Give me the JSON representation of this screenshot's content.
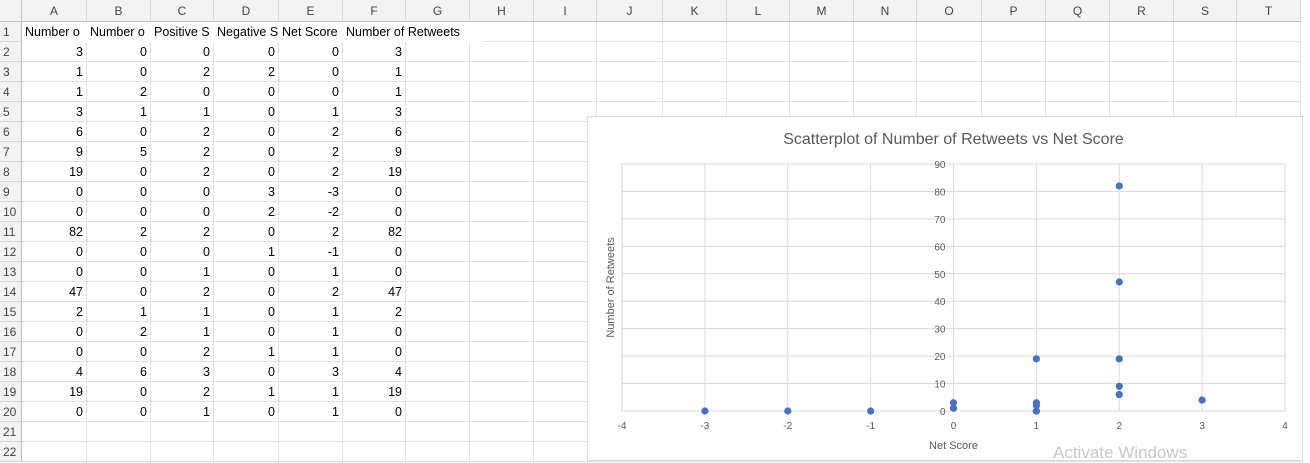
{
  "sheet": {
    "columns": [
      "A",
      "B",
      "C",
      "D",
      "E",
      "F",
      "G",
      "H",
      "I",
      "J",
      "K",
      "L",
      "M",
      "N",
      "O",
      "P",
      "Q",
      "R",
      "S",
      "T"
    ],
    "row_numbers": [
      "1",
      "2",
      "3",
      "4",
      "5",
      "6",
      "7",
      "8",
      "9",
      "10",
      "11",
      "12",
      "13",
      "14",
      "15",
      "16",
      "17",
      "18",
      "19",
      "20",
      "21",
      "22"
    ],
    "headers": [
      "Number o",
      "Number o",
      "Positive S",
      "Negative S",
      "Net Score",
      "Number of Retweets"
    ],
    "rows": [
      [
        "3",
        "0",
        "0",
        "0",
        "0",
        "3"
      ],
      [
        "1",
        "0",
        "2",
        "2",
        "0",
        "1"
      ],
      [
        "1",
        "2",
        "0",
        "0",
        "0",
        "1"
      ],
      [
        "3",
        "1",
        "1",
        "0",
        "1",
        "3"
      ],
      [
        "6",
        "0",
        "2",
        "0",
        "2",
        "6"
      ],
      [
        "9",
        "5",
        "2",
        "0",
        "2",
        "9"
      ],
      [
        "19",
        "0",
        "2",
        "0",
        "2",
        "19"
      ],
      [
        "0",
        "0",
        "0",
        "3",
        "-3",
        "0"
      ],
      [
        "0",
        "0",
        "0",
        "2",
        "-2",
        "0"
      ],
      [
        "82",
        "2",
        "2",
        "0",
        "2",
        "82"
      ],
      [
        "0",
        "0",
        "0",
        "1",
        "-1",
        "0"
      ],
      [
        "0",
        "0",
        "1",
        "0",
        "1",
        "0"
      ],
      [
        "47",
        "0",
        "2",
        "0",
        "2",
        "47"
      ],
      [
        "2",
        "1",
        "1",
        "0",
        "1",
        "2"
      ],
      [
        "0",
        "2",
        "1",
        "0",
        "1",
        "0"
      ],
      [
        "0",
        "0",
        "2",
        "1",
        "1",
        "0"
      ],
      [
        "4",
        "6",
        "3",
        "0",
        "3",
        "4"
      ],
      [
        "19",
        "0",
        "2",
        "1",
        "1",
        "19"
      ],
      [
        "0",
        "0",
        "1",
        "0",
        "1",
        "0"
      ]
    ]
  },
  "chart_data": {
    "type": "scatter",
    "title": "Scatterplot of Number of Retweets vs Net Score",
    "xlabel": "Net Score",
    "ylabel": "Number of Retweets",
    "xlim": [
      -4,
      4
    ],
    "ylim": [
      0,
      90
    ],
    "x_ticks": [
      "-4",
      "-3",
      "-2",
      "-1",
      "0",
      "1",
      "2",
      "3",
      "4"
    ],
    "y_ticks": [
      "0",
      "10",
      "20",
      "30",
      "40",
      "50",
      "60",
      "70",
      "80",
      "90"
    ],
    "grid": true,
    "marker_color": "#4472c4",
    "points": [
      {
        "x": 0,
        "y": 3
      },
      {
        "x": 0,
        "y": 1
      },
      {
        "x": 0,
        "y": 1
      },
      {
        "x": 1,
        "y": 3
      },
      {
        "x": 2,
        "y": 6
      },
      {
        "x": 2,
        "y": 9
      },
      {
        "x": 2,
        "y": 19
      },
      {
        "x": -3,
        "y": 0
      },
      {
        "x": -2,
        "y": 0
      },
      {
        "x": 2,
        "y": 82
      },
      {
        "x": -1,
        "y": 0
      },
      {
        "x": 1,
        "y": 0
      },
      {
        "x": 2,
        "y": 47
      },
      {
        "x": 1,
        "y": 2
      },
      {
        "x": 1,
        "y": 0
      },
      {
        "x": 1,
        "y": 0
      },
      {
        "x": 3,
        "y": 4
      },
      {
        "x": 1,
        "y": 19
      },
      {
        "x": 1,
        "y": 0
      }
    ]
  },
  "watermark": "Activate Windows"
}
